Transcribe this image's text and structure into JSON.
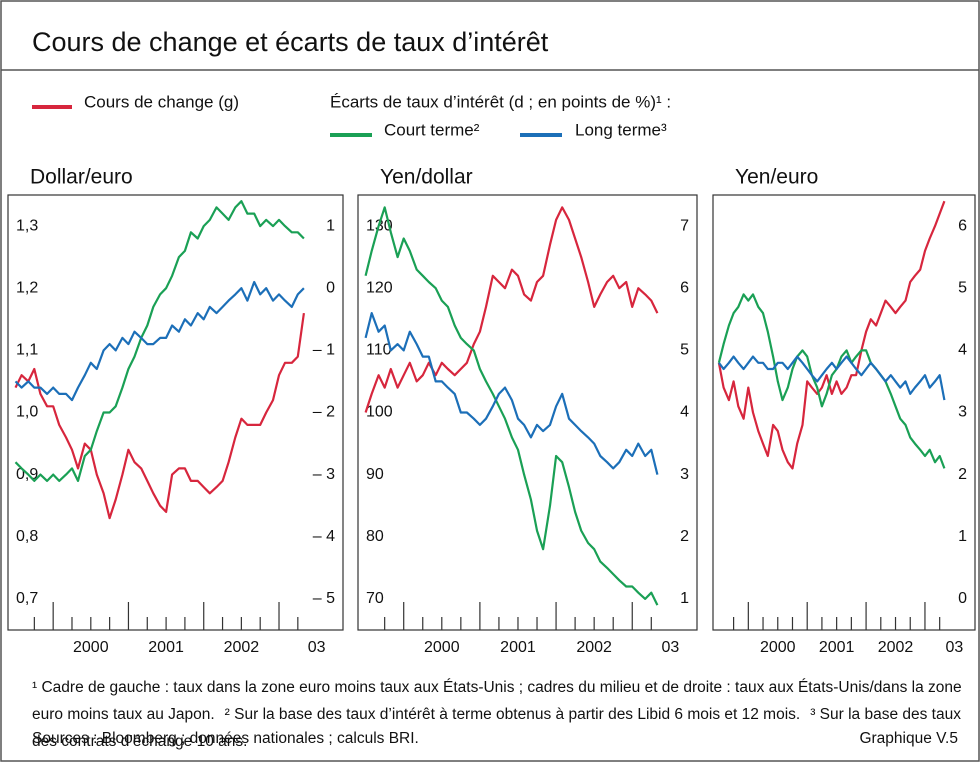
{
  "title": "Cours de change et écarts de taux d’intérêt",
  "legend": {
    "exchange": {
      "label": "Cours de change (g)",
      "color": "#d7263d"
    },
    "spreads_heading": "Écarts de taux d’intérêt (d ; en points de %)¹ :",
    "short": {
      "label": "Court terme²",
      "color": "#1aa055"
    },
    "long": {
      "label": "Long terme³",
      "color": "#1c6fb8"
    }
  },
  "chart_data": [
    {
      "type": "line",
      "title": "Dollar/euro",
      "x": [
        1999.5,
        1999.58,
        1999.67,
        1999.75,
        1999.83,
        1999.92,
        2000,
        2000.08,
        2000.17,
        2000.25,
        2000.33,
        2000.42,
        2000.5,
        2000.58,
        2000.67,
        2000.75,
        2000.83,
        2000.92,
        2001,
        2001.08,
        2001.17,
        2001.25,
        2001.33,
        2001.42,
        2001.5,
        2001.58,
        2001.67,
        2001.75,
        2001.83,
        2001.92,
        2002,
        2002.08,
        2002.17,
        2002.25,
        2002.33,
        2002.42,
        2002.5,
        2002.58,
        2002.67,
        2002.75,
        2002.83,
        2002.92,
        2003,
        2003.08,
        2003.17,
        2003.25,
        2003.33
      ],
      "xlim": [
        1999.4,
        2003.85
      ],
      "xticks": [
        2000,
        2001,
        2002,
        2003
      ],
      "xminorticks": [
        1999.75,
        2000.25,
        2000.5,
        2000.75,
        2001.25,
        2001.5,
        2001.75,
        2002.25,
        2002.5,
        2002.75,
        2003.25
      ],
      "xtick_labels": [
        {
          "value": 2000.5,
          "label": "2000"
        },
        {
          "value": 2001.5,
          "label": "2001"
        },
        {
          "value": 2002.5,
          "label": "2002"
        },
        {
          "value": 2003.5,
          "label": "03"
        }
      ],
      "ylim": [
        0.65,
        1.35
      ],
      "yticks": [
        {
          "value": 1.3,
          "label": "1,3"
        },
        {
          "value": 1.2,
          "label": "1,2"
        },
        {
          "value": 1.1,
          "label": "1,1"
        },
        {
          "value": 1.0,
          "label": "1,0"
        },
        {
          "value": 0.9,
          "label": "0,9"
        },
        {
          "value": 0.8,
          "label": "0,8"
        },
        {
          "value": 0.7,
          "label": "0,7"
        }
      ],
      "y2lim": [
        -5.5,
        1.5
      ],
      "y2ticks": [
        1,
        0,
        {
          "value": -1,
          "label": "– 1"
        },
        {
          "value": -2,
          "label": "– 2"
        },
        {
          "value": -3,
          "label": "– 3"
        },
        {
          "value": -4,
          "label": "– 4"
        },
        {
          "value": -5,
          "label": "– 5"
        }
      ],
      "series": [
        {
          "color": "#d7263d",
          "values": [
            1.04,
            1.06,
            1.05,
            1.07,
            1.03,
            1.01,
            1.01,
            0.98,
            0.96,
            0.94,
            0.91,
            0.95,
            0.94,
            0.9,
            0.87,
            0.83,
            0.86,
            0.9,
            0.94,
            0.92,
            0.91,
            0.89,
            0.87,
            0.85,
            0.84,
            0.9,
            0.91,
            0.91,
            0.89,
            0.89,
            0.88,
            0.87,
            0.88,
            0.89,
            0.92,
            0.96,
            0.99,
            0.98,
            0.98,
            0.98,
            1.0,
            1.02,
            1.06,
            1.08,
            1.08,
            1.09,
            1.16
          ]
        },
        {
          "color": "#1aa055",
          "axis": "y2",
          "values": [
            -2.8,
            -2.9,
            -3.0,
            -3.1,
            -3.0,
            -3.1,
            -3.0,
            -3.1,
            -3.0,
            -2.9,
            -3.1,
            -2.7,
            -2.6,
            -2.3,
            -2.0,
            -2.0,
            -1.9,
            -1.6,
            -1.3,
            -1.1,
            -0.8,
            -0.6,
            -0.3,
            -0.1,
            0.0,
            0.2,
            0.5,
            0.6,
            0.9,
            0.8,
            1.0,
            1.1,
            1.3,
            1.2,
            1.1,
            1.3,
            1.4,
            1.2,
            1.2,
            1.0,
            1.1,
            1.0,
            1.1,
            1.0,
            0.9,
            0.9,
            0.8
          ]
        },
        {
          "color": "#1c6fb8",
          "axis": "y2",
          "values": [
            -1.5,
            -1.6,
            -1.5,
            -1.6,
            -1.6,
            -1.7,
            -1.6,
            -1.7,
            -1.7,
            -1.8,
            -1.6,
            -1.4,
            -1.2,
            -1.3,
            -1.0,
            -0.9,
            -1.0,
            -0.8,
            -0.9,
            -0.7,
            -0.8,
            -0.9,
            -0.9,
            -0.8,
            -0.8,
            -0.6,
            -0.7,
            -0.5,
            -0.6,
            -0.4,
            -0.5,
            -0.3,
            -0.4,
            -0.3,
            -0.2,
            -0.1,
            0.0,
            -0.2,
            0.1,
            -0.1,
            0.0,
            -0.2,
            -0.1,
            -0.2,
            -0.3,
            -0.1,
            0.0
          ]
        }
      ]
    },
    {
      "type": "line",
      "title": "Yen/dollar",
      "x": [
        1999.5,
        1999.58,
        1999.67,
        1999.75,
        1999.83,
        1999.92,
        2000,
        2000.08,
        2000.17,
        2000.25,
        2000.33,
        2000.42,
        2000.5,
        2000.58,
        2000.67,
        2000.75,
        2000.83,
        2000.92,
        2001,
        2001.08,
        2001.17,
        2001.25,
        2001.33,
        2001.42,
        2001.5,
        2001.58,
        2001.67,
        2001.75,
        2001.83,
        2001.92,
        2002,
        2002.08,
        2002.17,
        2002.25,
        2002.33,
        2002.42,
        2002.5,
        2002.58,
        2002.67,
        2002.75,
        2002.83,
        2002.92,
        2003,
        2003.08,
        2003.17,
        2003.25,
        2003.33
      ],
      "xlim": [
        1999.4,
        2003.85
      ],
      "xticks": [
        2000,
        2001,
        2002,
        2003
      ],
      "xminorticks": [
        1999.75,
        2000.25,
        2000.5,
        2000.75,
        2001.25,
        2001.5,
        2001.75,
        2002.25,
        2002.5,
        2002.75,
        2003.25
      ],
      "xtick_labels": [
        {
          "value": 2000.5,
          "label": "2000"
        },
        {
          "value": 2001.5,
          "label": "2001"
        },
        {
          "value": 2002.5,
          "label": "2002"
        },
        {
          "value": 2003.5,
          "label": "03"
        }
      ],
      "ylim": [
        65,
        135
      ],
      "yticks": [
        130,
        120,
        110,
        100,
        90,
        80,
        70
      ],
      "y2lim": [
        0.5,
        7.5
      ],
      "y2ticks": [
        7,
        6,
        5,
        4,
        3,
        2,
        1
      ],
      "series": [
        {
          "color": "#d7263d",
          "values": [
            100,
            103,
            106,
            104,
            107,
            104,
            106,
            108,
            105,
            106,
            108,
            106,
            108,
            107,
            106,
            107,
            108,
            111,
            113,
            117,
            122,
            121,
            120,
            123,
            122,
            119,
            118,
            121,
            122,
            127,
            131,
            133,
            131,
            128,
            125,
            121,
            117,
            119,
            121,
            122,
            120,
            121,
            117,
            120,
            119,
            118,
            116
          ]
        },
        {
          "color": "#1aa055",
          "axis": "y2",
          "values": [
            6.2,
            6.6,
            7.0,
            7.3,
            6.9,
            6.5,
            6.8,
            6.6,
            6.3,
            6.2,
            6.1,
            6.0,
            5.8,
            5.7,
            5.4,
            5.2,
            5.1,
            5.0,
            4.7,
            4.5,
            4.3,
            4.1,
            3.9,
            3.6,
            3.4,
            3.0,
            2.6,
            2.1,
            1.8,
            2.5,
            3.3,
            3.2,
            2.8,
            2.4,
            2.1,
            1.9,
            1.8,
            1.6,
            1.5,
            1.4,
            1.3,
            1.2,
            1.2,
            1.1,
            1.0,
            1.1,
            0.9
          ]
        },
        {
          "color": "#1c6fb8",
          "axis": "y2",
          "values": [
            5.2,
            5.6,
            5.3,
            5.4,
            5.0,
            5.1,
            5.0,
            5.3,
            5.1,
            4.9,
            4.9,
            4.5,
            4.5,
            4.4,
            4.3,
            4.0,
            4.0,
            3.9,
            3.8,
            3.9,
            4.1,
            4.3,
            4.4,
            4.2,
            3.9,
            3.8,
            3.6,
            3.8,
            3.7,
            3.8,
            4.1,
            4.3,
            3.9,
            3.8,
            3.7,
            3.6,
            3.5,
            3.3,
            3.2,
            3.1,
            3.2,
            3.4,
            3.3,
            3.5,
            3.3,
            3.4,
            3.0
          ]
        }
      ]
    },
    {
      "type": "line",
      "title": "Yen/euro",
      "x": [
        1999.5,
        1999.58,
        1999.67,
        1999.75,
        1999.83,
        1999.92,
        2000,
        2000.08,
        2000.17,
        2000.25,
        2000.33,
        2000.42,
        2000.5,
        2000.58,
        2000.67,
        2000.75,
        2000.83,
        2000.92,
        2001,
        2001.08,
        2001.17,
        2001.25,
        2001.33,
        2001.42,
        2001.5,
        2001.58,
        2001.67,
        2001.75,
        2001.83,
        2001.92,
        2002,
        2002.08,
        2002.17,
        2002.25,
        2002.33,
        2002.42,
        2002.5,
        2002.58,
        2002.67,
        2002.75,
        2002.83,
        2002.92,
        2003,
        2003.08,
        2003.17,
        2003.25,
        2003.33
      ],
      "xlim": [
        1999.4,
        2003.85
      ],
      "xticks": [
        2000,
        2001,
        2002,
        2003
      ],
      "xminorticks": [
        1999.75,
        2000.25,
        2000.5,
        2000.75,
        2001.25,
        2001.5,
        2001.75,
        2002.25,
        2002.5,
        2002.75,
        2003.25
      ],
      "xtick_labels": [
        {
          "value": 2000.5,
          "label": "2000"
        },
        {
          "value": 2001.5,
          "label": "2001"
        },
        {
          "value": 2002.5,
          "label": "2002"
        },
        {
          "value": 2003.5,
          "label": "03"
        }
      ],
      "ylim": [
        65,
        135
      ],
      "y2lim": [
        -0.5,
        6.5
      ],
      "y2ticks": [
        6,
        5,
        4,
        3,
        2,
        1,
        0
      ],
      "series": [
        {
          "color": "#d7263d",
          "values": [
            108,
            104,
            102,
            105,
            101,
            99,
            104,
            100,
            97,
            95,
            93,
            98,
            97,
            94,
            92,
            91,
            95,
            98,
            105,
            104,
            103,
            104,
            106,
            103,
            105,
            103,
            104,
            106,
            106,
            110,
            113,
            115,
            114,
            116,
            118,
            117,
            116,
            117,
            118,
            121,
            122,
            123,
            126,
            128,
            130,
            132,
            134
          ]
        },
        {
          "color": "#1aa055",
          "axis": "y2",
          "values": [
            3.8,
            4.1,
            4.4,
            4.6,
            4.7,
            4.9,
            4.8,
            4.9,
            4.7,
            4.6,
            4.3,
            3.9,
            3.5,
            3.2,
            3.4,
            3.7,
            3.9,
            4.0,
            3.9,
            3.6,
            3.4,
            3.1,
            3.3,
            3.6,
            3.7,
            3.9,
            4.0,
            3.8,
            3.9,
            4.0,
            4.0,
            3.8,
            3.7,
            3.6,
            3.5,
            3.3,
            3.1,
            2.9,
            2.8,
            2.6,
            2.5,
            2.4,
            2.3,
            2.4,
            2.2,
            2.3,
            2.1
          ]
        },
        {
          "color": "#1c6fb8",
          "axis": "y2",
          "values": [
            3.8,
            3.7,
            3.8,
            3.9,
            3.8,
            3.7,
            3.8,
            3.9,
            3.8,
            3.8,
            3.7,
            3.7,
            3.8,
            3.8,
            3.7,
            3.8,
            3.9,
            3.8,
            3.7,
            3.6,
            3.5,
            3.6,
            3.7,
            3.8,
            3.7,
            3.8,
            3.9,
            3.8,
            3.7,
            3.6,
            3.7,
            3.8,
            3.7,
            3.6,
            3.5,
            3.6,
            3.5,
            3.4,
            3.5,
            3.3,
            3.4,
            3.5,
            3.6,
            3.4,
            3.5,
            3.6,
            3.2
          ]
        }
      ]
    }
  ],
  "footnotes": [
    "¹ Cadre de gauche : taux dans la zone euro moins taux aux États-Unis ; cadres du milieu et de droite : taux aux États-Unis/dans la zone euro moins taux au Japon.",
    "² Sur la base des taux d’intérêt à terme obtenus à partir des Libid 6 mois et 12 mois.",
    "³ Sur la base des taux des contrats d’échange 10 ans."
  ],
  "sources": "Sources : Bloomberg ; données nationales ; calculs BRI.",
  "figure_label": "Graphique V.5"
}
